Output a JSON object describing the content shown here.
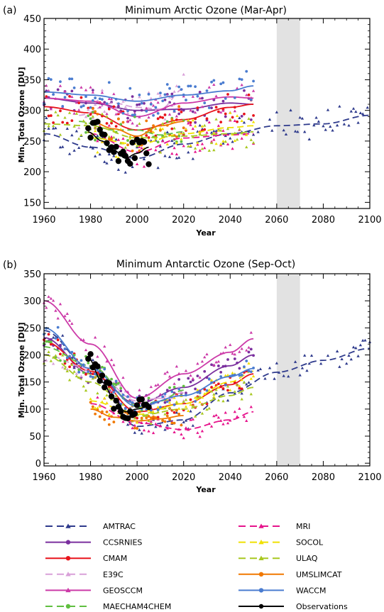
{
  "legend_entries": [
    {
      "name": "AMTRAC",
      "color": "#2e3a8c",
      "style": "dash",
      "marker": "triangle"
    },
    {
      "name": "CCSRNIES",
      "color": "#7a2f9e",
      "style": "solid",
      "marker": "circle"
    },
    {
      "name": "CMAM",
      "color": "#e8141c",
      "style": "solid",
      "marker": "circle"
    },
    {
      "name": "E39C",
      "color": "#d9a0d9",
      "style": "dash",
      "marker": "triangle"
    },
    {
      "name": "GEOSCCM",
      "color": "#cc3aa8",
      "style": "solid",
      "marker": "triangle"
    },
    {
      "name": "MAECHAM4CHEM",
      "color": "#60bf40",
      "style": "dash",
      "marker": "circle"
    },
    {
      "name": "MRI",
      "color": "#e6148c",
      "style": "dash",
      "marker": "triangle"
    },
    {
      "name": "SOCOL",
      "color": "#f0e000",
      "style": "dash",
      "marker": "triangle"
    },
    {
      "name": "ULAQ",
      "color": "#a8c820",
      "style": "dash",
      "marker": "triangle"
    },
    {
      "name": "UMSLIMCAT",
      "color": "#f07800",
      "style": "solid",
      "marker": "circle"
    },
    {
      "name": "WACCM",
      "color": "#4a7cd0",
      "style": "solid",
      "marker": "circle"
    },
    {
      "name": "Observations",
      "color": "#000000",
      "style": "solid",
      "marker": "circle"
    }
  ],
  "chart_data": [
    {
      "type": "line",
      "panel_label": "(a)",
      "title": "Minimum Arctic Ozone (Mar-Apr)",
      "xlabel": "Year",
      "ylabel": "Min. Total Ozone [DU]",
      "xlim": [
        1960,
        2100
      ],
      "ylim": [
        140,
        450
      ],
      "xticks": [
        1960,
        1980,
        2000,
        2020,
        2040,
        2060,
        2080,
        2100
      ],
      "yticks": [
        150,
        200,
        250,
        300,
        350,
        400,
        450
      ],
      "shaded_x": [
        2060,
        2070
      ],
      "series": [
        {
          "name": "AMTRAC",
          "x": [
            1960,
            1980,
            2000,
            2020,
            2040,
            2060,
            2080,
            2100
          ],
          "values": [
            262,
            240,
            222,
            245,
            262,
            275,
            278,
            292
          ]
        },
        {
          "name": "CCSRNIES",
          "x": [
            1960,
            1980,
            2000,
            2020,
            2040,
            2050
          ],
          "values": [
            320,
            312,
            300,
            302,
            312,
            310
          ]
        },
        {
          "name": "CMAM",
          "x": [
            1960,
            1980,
            2000,
            2020,
            2040,
            2050
          ],
          "values": [
            306,
            296,
            268,
            285,
            305,
            310
          ]
        },
        {
          "name": "E39C",
          "x": [
            1975,
            1990,
            2000,
            2010,
            2020
          ],
          "values": [
            292,
            312,
            305,
            302,
            335
          ]
        },
        {
          "name": "GEOSCCM",
          "x": [
            1960,
            1980,
            2000,
            2020,
            2040,
            2050
          ],
          "values": [
            320,
            315,
            290,
            312,
            322,
            320
          ]
        },
        {
          "name": "MAECHAM4CHEM",
          "x": [
            1975,
            1990,
            2000,
            2010,
            2020
          ],
          "values": [
            282,
            268,
            268,
            260,
            265
          ]
        },
        {
          "name": "MRI",
          "x": [
            1980,
            2000,
            2020,
            2040,
            2050
          ],
          "values": [
            262,
            232,
            255,
            260,
            262
          ]
        },
        {
          "name": "SOCOL",
          "x": [
            1980,
            2000,
            2020,
            2040,
            2050
          ],
          "values": [
            255,
            245,
            262,
            272,
            275
          ]
        },
        {
          "name": "ULAQ",
          "x": [
            1960,
            1980,
            2000,
            2020,
            2040,
            2050
          ],
          "values": [
            278,
            275,
            255,
            258,
            262,
            265
          ]
        },
        {
          "name": "UMSLIMCAT",
          "x": [
            1980,
            1990,
            2000,
            2010,
            2020
          ],
          "values": [
            282,
            270,
            258,
            275,
            282
          ]
        },
        {
          "name": "WACCM",
          "x": [
            1960,
            1980,
            2000,
            2020,
            2040,
            2050
          ],
          "values": [
            330,
            325,
            315,
            325,
            332,
            340
          ]
        },
        {
          "name": "Observations",
          "x": [
            1979,
            1985,
            1990,
            1995,
            2000,
            2005
          ],
          "values": [
            265,
            250,
            235,
            222,
            230,
            240
          ]
        }
      ]
    },
    {
      "type": "line",
      "panel_label": "(b)",
      "title": "Minimum Antarctic Ozone (Sep-Oct)",
      "xlabel": "Year",
      "ylabel": "Min. Total Ozone [DU]",
      "xlim": [
        1960,
        2100
      ],
      "ylim": [
        -5,
        350
      ],
      "xticks": [
        1960,
        1980,
        2000,
        2020,
        2040,
        2060,
        2080,
        2100
      ],
      "yticks": [
        0,
        50,
        100,
        150,
        200,
        250,
        300,
        350
      ],
      "shaded_x": [
        2060,
        2070
      ],
      "series": [
        {
          "name": "AMTRAC",
          "x": [
            1960,
            1980,
            2000,
            2020,
            2040,
            2060,
            2080,
            2100
          ],
          "values": [
            245,
            175,
            68,
            80,
            130,
            168,
            190,
            212
          ]
        },
        {
          "name": "CCSRNIES",
          "x": [
            1960,
            1980,
            2000,
            2020,
            2040,
            2050
          ],
          "values": [
            232,
            165,
            110,
            140,
            180,
            200
          ]
        },
        {
          "name": "CMAM",
          "x": [
            1960,
            1980,
            2000,
            2020,
            2040,
            2050
          ],
          "values": [
            225,
            170,
            95,
            110,
            145,
            165
          ]
        },
        {
          "name": "E39C",
          "x": [
            1960,
            1980,
            2000,
            2010,
            2020
          ],
          "values": [
            200,
            175,
            115,
            120,
            130
          ]
        },
        {
          "name": "GEOSCCM",
          "x": [
            1960,
            1980,
            2000,
            2020,
            2040,
            2050
          ],
          "values": [
            300,
            220,
            120,
            165,
            205,
            230
          ]
        },
        {
          "name": "MAECHAM4CHEM",
          "x": [
            1960,
            1980,
            2000,
            2010,
            2020
          ],
          "values": [
            215,
            180,
            105,
            115,
            135
          ]
        },
        {
          "name": "MRI",
          "x": [
            1980,
            2000,
            2020,
            2040,
            2050
          ],
          "values": [
            110,
            75,
            62,
            80,
            95
          ]
        },
        {
          "name": "SOCOL",
          "x": [
            1980,
            2000,
            2020,
            2040,
            2050
          ],
          "values": [
            115,
            90,
            110,
            150,
            170
          ]
        },
        {
          "name": "ULAQ",
          "x": [
            1960,
            1980,
            2000,
            2020,
            2040,
            2050
          ],
          "values": [
            200,
            150,
            88,
            100,
            125,
            140
          ]
        },
        {
          "name": "UMSLIMCAT",
          "x": [
            1980,
            1990,
            2000,
            2010,
            2020
          ],
          "values": [
            100,
            85,
            78,
            82,
            88
          ]
        },
        {
          "name": "WACCM",
          "x": [
            1960,
            1980,
            2000,
            2020,
            2040,
            2050
          ],
          "values": [
            250,
            175,
            105,
            125,
            160,
            175
          ]
        },
        {
          "name": "Observations",
          "x": [
            1979,
            1985,
            1990,
            1995,
            2000,
            2005
          ],
          "values": [
            195,
            150,
            120,
            95,
            100,
            105
          ]
        }
      ]
    }
  ]
}
